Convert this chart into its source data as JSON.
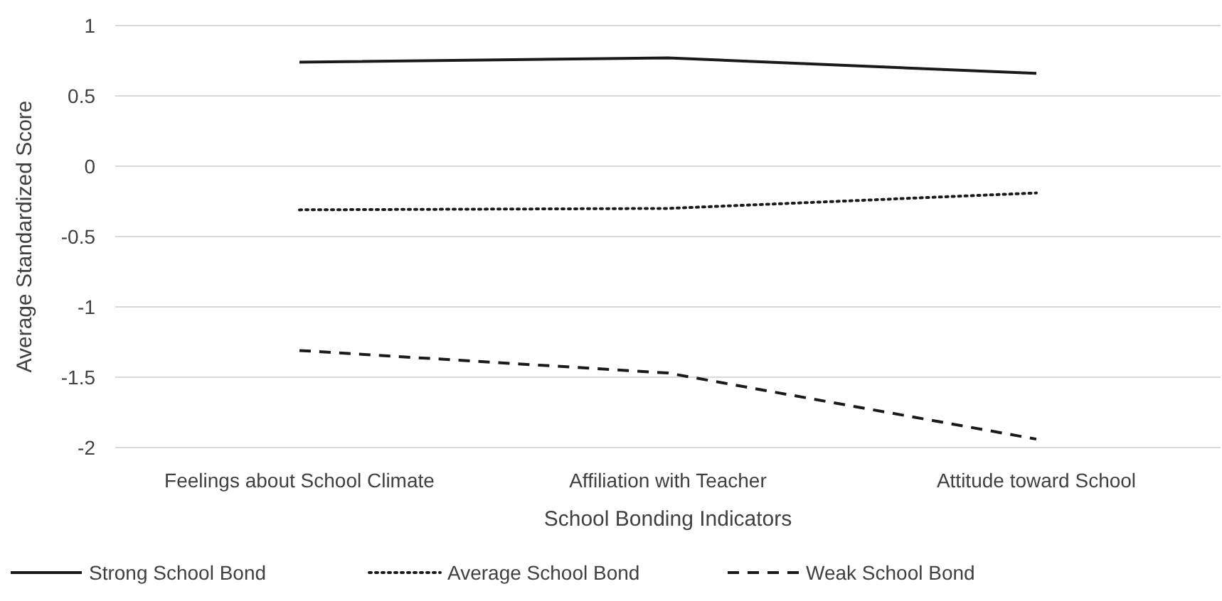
{
  "chart_data": {
    "type": "line",
    "xlabel": "School Bonding Indicators",
    "ylabel": "Average Standardized Score",
    "categories": [
      "Feelings about School Climate",
      "Affiliation with Teacher",
      "Attitude toward School"
    ],
    "series": [
      {
        "name": "Strong School Bond",
        "color": "#1a1a1a",
        "values": [
          0.74,
          0.77,
          0.66
        ],
        "line_style": "solid"
      },
      {
        "name": "Average School Bond",
        "color": "#1a1a1a",
        "values": [
          -0.31,
          -0.3,
          -0.19
        ],
        "line_style": "dotted"
      },
      {
        "name": "Weak School Bond",
        "color": "#1a1a1a",
        "values": [
          -1.31,
          -1.47,
          -1.94
        ],
        "line_style": "dashed"
      }
    ],
    "ylim": [
      -2,
      1
    ],
    "yticks": [
      -2,
      -1.5,
      -1,
      -0.5,
      0,
      0.5,
      1
    ],
    "grid": "y",
    "legend": "bottom"
  }
}
